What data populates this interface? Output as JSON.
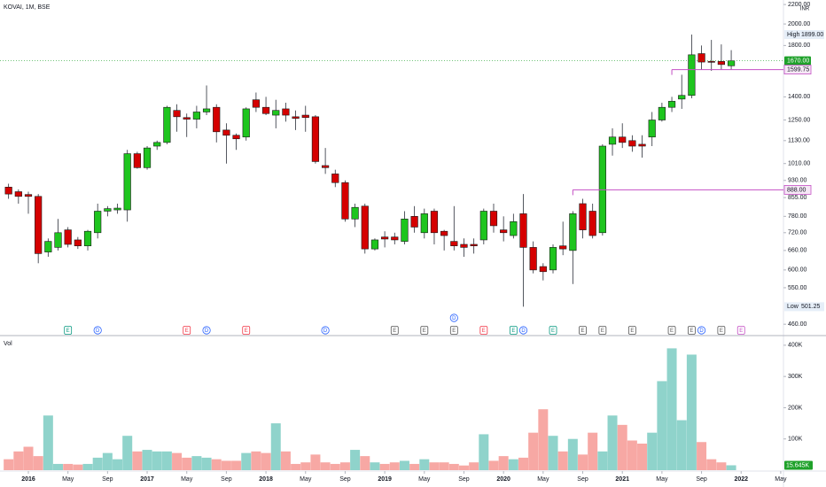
{
  "chart_data": [
    {
      "type": "candlestick",
      "title": "KOVAI, 1M, BSE",
      "y_axis_label": "INR",
      "log_scale": true,
      "up_color": "#1ec51e",
      "down_color": "#d50000",
      "x": [
        "2015-11",
        "2015-12",
        "2016-01",
        "2016-02",
        "2016-03",
        "2016-04",
        "2016-05",
        "2016-06",
        "2016-07",
        "2016-08",
        "2016-09",
        "2016-10",
        "2016-11",
        "2016-12",
        "2017-01",
        "2017-02",
        "2017-03",
        "2017-04",
        "2017-05",
        "2017-06",
        "2017-07",
        "2017-08",
        "2017-09",
        "2017-10",
        "2017-11",
        "2017-12",
        "2018-01",
        "2018-02",
        "2018-03",
        "2018-04",
        "2018-05",
        "2018-06",
        "2018-07",
        "2018-08",
        "2018-09",
        "2018-10",
        "2018-11",
        "2018-12",
        "2019-01",
        "2019-02",
        "2019-03",
        "2019-04",
        "2019-05",
        "2019-06",
        "2019-07",
        "2019-08",
        "2019-09",
        "2019-10",
        "2019-11",
        "2019-12",
        "2020-01",
        "2020-02",
        "2020-03",
        "2020-04",
        "2020-05",
        "2020-06",
        "2020-07",
        "2020-08",
        "2020-09",
        "2020-10",
        "2020-11",
        "2020-12",
        "2021-01",
        "2021-02",
        "2021-03",
        "2021-04",
        "2021-05",
        "2021-06",
        "2021-07",
        "2021-08",
        "2021-09",
        "2021-10",
        "2021-11",
        "2021-12"
      ],
      "open": [
        900,
        880,
        868,
        860,
        655,
        670,
        730,
        695,
        675,
        720,
        800,
        805,
        805,
        1060,
        990,
        1100,
        1120,
        1310,
        1265,
        1255,
        1300,
        1330,
        1190,
        1160,
        1150,
        1380,
        1330,
        1280,
        1320,
        1270,
        1280,
        1270,
        1000,
        960,
        920,
        770,
        820,
        665,
        705,
        705,
        690,
        780,
        720,
        800,
        725,
        690,
        680,
        680,
        695,
        800,
        730,
        710,
        790,
        670,
        610,
        600,
        675,
        660,
        830,
        800,
        720,
        1110,
        1150,
        1130,
        1110,
        1150,
        1250,
        1330,
        1385,
        1410,
        1730,
        1665,
        1665,
        1630
      ],
      "high": [
        915,
        890,
        880,
        870,
        700,
        770,
        740,
        705,
        730,
        830,
        820,
        830,
        1080,
        1070,
        1100,
        1130,
        1340,
        1350,
        1290,
        1340,
        1480,
        1350,
        1230,
        1170,
        1330,
        1430,
        1400,
        1380,
        1360,
        1310,
        1340,
        1280,
        1090,
        980,
        930,
        830,
        830,
        700,
        725,
        720,
        800,
        820,
        810,
        810,
        730,
        820,
        700,
        700,
        810,
        830,
        780,
        790,
        870,
        690,
        620,
        680,
        760,
        800,
        850,
        830,
        1110,
        1200,
        1230,
        1160,
        1160,
        1300,
        1360,
        1400,
        1560,
        1899,
        1800,
        1850,
        1810,
        1760
      ],
      "low": [
        850,
        830,
        790,
        620,
        640,
        660,
        670,
        665,
        660,
        700,
        780,
        790,
        760,
        985,
        980,
        1080,
        1110,
        1180,
        1150,
        1200,
        1280,
        1120,
        1010,
        1080,
        1130,
        1300,
        1280,
        1200,
        1240,
        1190,
        1180,
        1010,
        960,
        900,
        760,
        740,
        650,
        660,
        670,
        680,
        680,
        720,
        700,
        680,
        660,
        660,
        640,
        650,
        680,
        720,
        690,
        700,
        501.25,
        590,
        570,
        590,
        645,
        560,
        700,
        700,
        710,
        1050,
        1090,
        1070,
        1040,
        1100,
        1240,
        1300,
        1320,
        1390,
        1600,
        1590,
        1600,
        1600
      ],
      "close": [
        870,
        860,
        860,
        650,
        690,
        720,
        680,
        675,
        725,
        800,
        810,
        812,
        1060,
        990,
        1090,
        1120,
        1330,
        1270,
        1255,
        1300,
        1320,
        1180,
        1160,
        1140,
        1320,
        1330,
        1290,
        1310,
        1280,
        1260,
        1265,
        1020,
        990,
        920,
        770,
        815,
        665,
        695,
        698,
        695,
        770,
        740,
        790,
        720,
        710,
        675,
        670,
        675,
        800,
        745,
        720,
        760,
        670,
        600,
        595,
        670,
        665,
        790,
        730,
        710,
        1100,
        1150,
        1120,
        1100,
        1100,
        1250,
        1330,
        1370,
        1410,
        1720,
        1660,
        1660,
        1640,
        1670
      ],
      "ylim": [
        437,
        2249
      ],
      "yticks": [
        {
          "value": 2200,
          "label": "2200.00"
        },
        {
          "value": 2000,
          "label": "2000.00"
        },
        {
          "value": 1800,
          "label": "1800.00"
        },
        {
          "value": 1400,
          "label": "1400.00"
        },
        {
          "value": 1250,
          "label": "1250.00"
        },
        {
          "value": 1130,
          "label": "1130.00"
        },
        {
          "value": 1010,
          "label": "1010.00"
        },
        {
          "value": 930,
          "label": "930.00"
        },
        {
          "value": 855,
          "label": "855.00"
        },
        {
          "value": 780,
          "label": "780.00"
        },
        {
          "value": 720,
          "label": "720.00"
        },
        {
          "value": 660,
          "label": "660.00"
        },
        {
          "value": 600,
          "label": "600.00"
        },
        {
          "value": 550,
          "label": "550.00"
        },
        {
          "value": 460,
          "label": "460.00"
        }
      ],
      "xticks": [
        {
          "value": "2016-01",
          "label": "2016"
        },
        {
          "value": "2016-05",
          "label": "May"
        },
        {
          "value": "2016-09",
          "label": "Sep"
        },
        {
          "value": "2017-01",
          "label": "2017"
        },
        {
          "value": "2017-05",
          "label": "May"
        },
        {
          "value": "2017-09",
          "label": "Sep"
        },
        {
          "value": "2018-01",
          "label": "2018"
        },
        {
          "value": "2018-05",
          "label": "May"
        },
        {
          "value": "2018-09",
          "label": "Sep"
        },
        {
          "value": "2019-01",
          "label": "2019"
        },
        {
          "value": "2019-05",
          "label": "May"
        },
        {
          "value": "2019-09",
          "label": "Sep"
        },
        {
          "value": "2020-01",
          "label": "2020"
        },
        {
          "value": "2020-05",
          "label": "May"
        },
        {
          "value": "2020-09",
          "label": "Sep"
        },
        {
          "value": "2021-01",
          "label": "2021"
        },
        {
          "value": "2021-05",
          "label": "May"
        },
        {
          "value": "2021-09",
          "label": "Sep"
        },
        {
          "value": "2022-01",
          "label": "2022"
        },
        {
          "value": "2022-05",
          "label": "May"
        }
      ],
      "price_lines": [
        {
          "name": "High",
          "value": 1899,
          "label": "1899.00",
          "style": "tag"
        },
        {
          "value": 1670,
          "label": "1670.00",
          "color": "#1fa12a",
          "style": "current"
        },
        {
          "value": 1599.75,
          "label": "1599.75",
          "color": "#c44fc4",
          "style": "line",
          "from": "2021-06"
        },
        {
          "value": 888,
          "label": "888.00",
          "color": "#c44fc4",
          "style": "line",
          "from": "2020-08"
        },
        {
          "name": "Low",
          "value": 501.25,
          "label": "501.25",
          "style": "tag"
        }
      ],
      "events": [
        {
          "x": "2016-05",
          "label": "E",
          "color": "#089981"
        },
        {
          "x": "2016-08",
          "label": "D",
          "color": "#2962ff"
        },
        {
          "x": "2017-05",
          "label": "E",
          "color": "#f23645"
        },
        {
          "x": "2017-07",
          "label": "D",
          "color": "#2962ff"
        },
        {
          "x": "2017-11",
          "label": "E",
          "color": "#f23645"
        },
        {
          "x": "2018-07",
          "label": "D",
          "color": "#2962ff"
        },
        {
          "x": "2019-02",
          "label": "E",
          "color": "#555555"
        },
        {
          "x": "2019-05",
          "label": "E",
          "color": "#555555"
        },
        {
          "x": "2019-08",
          "label": "E",
          "color": "#555555"
        },
        {
          "x": "2019-08",
          "label": "D",
          "color": "#2962ff"
        },
        {
          "x": "2019-11",
          "label": "E",
          "color": "#f23645"
        },
        {
          "x": "2020-02",
          "label": "E",
          "color": "#089981"
        },
        {
          "x": "2020-03",
          "label": "D",
          "color": "#2962ff"
        },
        {
          "x": "2020-06",
          "label": "E",
          "color": "#089981"
        },
        {
          "x": "2020-09",
          "label": "E",
          "color": "#555555"
        },
        {
          "x": "2020-11",
          "label": "E",
          "color": "#555555"
        },
        {
          "x": "2021-02",
          "label": "E",
          "color": "#555555"
        },
        {
          "x": "2021-06",
          "label": "E",
          "color": "#555555"
        },
        {
          "x": "2021-08",
          "label": "E",
          "color": "#555555"
        },
        {
          "x": "2021-09",
          "label": "D",
          "color": "#2962ff"
        },
        {
          "x": "2021-11",
          "label": "E",
          "color": "#555555"
        },
        {
          "x": "2022-01",
          "label": "E",
          "color": "#c44fc4"
        }
      ]
    },
    {
      "type": "bar",
      "title": "Vol",
      "up_color": "#8fd3cb",
      "down_color": "#f7a8a4",
      "x": [
        "2015-11",
        "2015-12",
        "2016-01",
        "2016-02",
        "2016-03",
        "2016-04",
        "2016-05",
        "2016-06",
        "2016-07",
        "2016-08",
        "2016-09",
        "2016-10",
        "2016-11",
        "2016-12",
        "2017-01",
        "2017-02",
        "2017-03",
        "2017-04",
        "2017-05",
        "2017-06",
        "2017-07",
        "2017-08",
        "2017-09",
        "2017-10",
        "2017-11",
        "2017-12",
        "2018-01",
        "2018-02",
        "2018-03",
        "2018-04",
        "2018-05",
        "2018-06",
        "2018-07",
        "2018-08",
        "2018-09",
        "2018-10",
        "2018-11",
        "2018-12",
        "2019-01",
        "2019-02",
        "2019-03",
        "2019-04",
        "2019-05",
        "2019-06",
        "2019-07",
        "2019-08",
        "2019-09",
        "2019-10",
        "2019-11",
        "2019-12",
        "2020-01",
        "2020-02",
        "2020-03",
        "2020-04",
        "2020-05",
        "2020-06",
        "2020-07",
        "2020-08",
        "2020-09",
        "2020-10",
        "2020-11",
        "2020-12",
        "2021-01",
        "2021-02",
        "2021-03",
        "2021-04",
        "2021-05",
        "2021-06",
        "2021-07",
        "2021-08",
        "2021-09",
        "2021-10",
        "2021-11",
        "2021-12"
      ],
      "values": [
        35000,
        60000,
        75000,
        45000,
        175000,
        20000,
        20000,
        18000,
        20000,
        40000,
        55000,
        35000,
        110000,
        60000,
        65000,
        60000,
        60000,
        55000,
        40000,
        45000,
        40000,
        35000,
        30000,
        30000,
        55000,
        60000,
        55000,
        150000,
        60000,
        20000,
        25000,
        50000,
        25000,
        20000,
        25000,
        65000,
        45000,
        25000,
        20000,
        25000,
        30000,
        20000,
        35000,
        25000,
        25000,
        20000,
        15000,
        25000,
        115000,
        30000,
        45000,
        35000,
        40000,
        120000,
        195000,
        110000,
        60000,
        100000,
        50000,
        120000,
        60000,
        175000,
        145000,
        95000,
        85000,
        120000,
        285000,
        390000,
        160000,
        370000,
        90000,
        35000,
        25000,
        15645
      ],
      "ylim": [
        0,
        428000
      ],
      "yticks": [
        {
          "value": 100000,
          "label": "100K"
        },
        {
          "value": 200000,
          "label": "200K"
        },
        {
          "value": 300000,
          "label": "300K"
        },
        {
          "value": 400000,
          "label": "400K"
        }
      ],
      "current": {
        "value": 15645,
        "label": "15.645K",
        "color": "#1fa12a"
      }
    }
  ]
}
